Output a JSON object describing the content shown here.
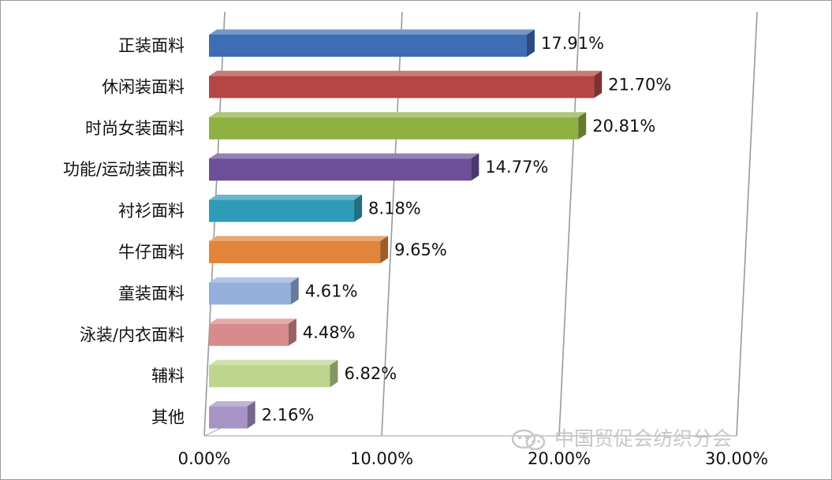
{
  "chart_data": {
    "type": "bar",
    "orientation": "horizontal",
    "style": "3d",
    "categories": [
      "正装面料",
      "休闲装面料",
      "时尚女装面料",
      "功能/运动装面料",
      "衬衫面料",
      "牛仔面料",
      "童装面料",
      "泳装/内衣面料",
      "辅料",
      "其他"
    ],
    "values": [
      17.91,
      21.7,
      20.81,
      14.77,
      8.18,
      9.65,
      4.61,
      4.48,
      6.82,
      2.16
    ],
    "value_labels": [
      "17.91%",
      "21.70%",
      "20.81%",
      "14.77%",
      "8.18%",
      "9.65%",
      "4.61%",
      "4.48%",
      "6.82%",
      "2.16%"
    ],
    "bar_colors": [
      "#3f6db3",
      "#b64545",
      "#8fb043",
      "#6d4f97",
      "#2f9bb8",
      "#e2843a",
      "#95aedc",
      "#d98a8c",
      "#bdd58c",
      "#a695c4"
    ],
    "x_ticks": [
      0,
      10,
      20,
      30
    ],
    "x_tick_labels": [
      "0.00%",
      "10.00%",
      "20.00%",
      "30.00%"
    ],
    "xlim": [
      0,
      30
    ],
    "grid": true,
    "title": "",
    "xlabel": "",
    "ylabel": ""
  },
  "watermark": {
    "icon": "wechat-icon",
    "text": "中国贸促会纺织分会"
  }
}
